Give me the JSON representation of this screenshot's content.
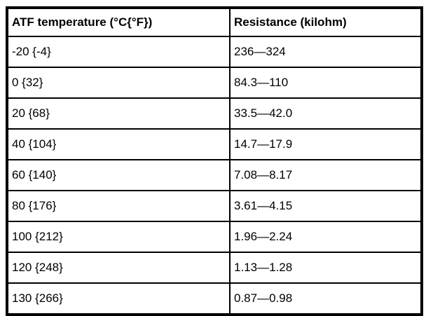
{
  "table": {
    "headers": {
      "temperature": "ATF temperature (°C{°F})",
      "resistance": "Resistance (kilohm)"
    },
    "rows": [
      {
        "temp": "-20 {-4}",
        "res": "236—324"
      },
      {
        "temp": "0 {32}",
        "res": "84.3—110"
      },
      {
        "temp": "20 {68}",
        "res": "33.5—42.0"
      },
      {
        "temp": "40 {104}",
        "res": "14.7—17.9"
      },
      {
        "temp": "60 {140}",
        "res": "7.08—8.17"
      },
      {
        "temp": "80 {176}",
        "res": "3.61—4.15"
      },
      {
        "temp": "100 {212}",
        "res": "1.96—2.24"
      },
      {
        "temp": "120 {248}",
        "res": "1.13—1.28"
      },
      {
        "temp": "130 {266}",
        "res": "0.87—0.98"
      }
    ]
  }
}
